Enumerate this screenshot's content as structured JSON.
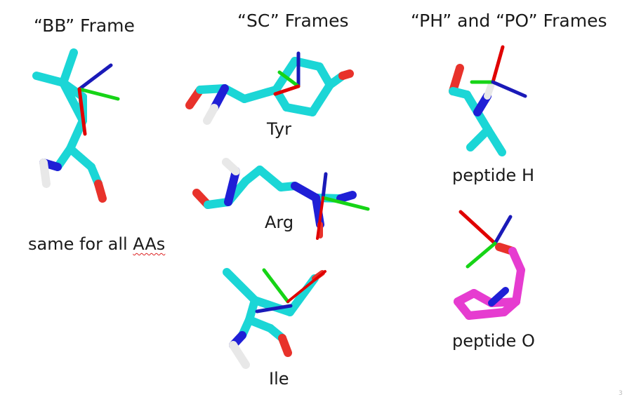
{
  "headers": {
    "bb": "“BB” Frame",
    "sc": "“SC” Frames",
    "ph_po": "“PH” and “PO” Frames"
  },
  "captions": {
    "bb_prefix": "same for all ",
    "bb_underlined": "AAs",
    "tyr": "Tyr",
    "arg": "Arg",
    "ile": "Ile",
    "peptide_h": "peptide H",
    "peptide_o": "peptide O"
  },
  "slide_number": "3",
  "colors": {
    "carbon": "#1bd6d6",
    "nitrogen": "#1f1fd6",
    "oxygen": "#e8322b",
    "hydrogen": "#e8e8e8",
    "peptide_carbon": "#e63cd0",
    "axis_x": "#e00000",
    "axis_y": "#16d416",
    "axis_z": "#1a1ab8"
  }
}
